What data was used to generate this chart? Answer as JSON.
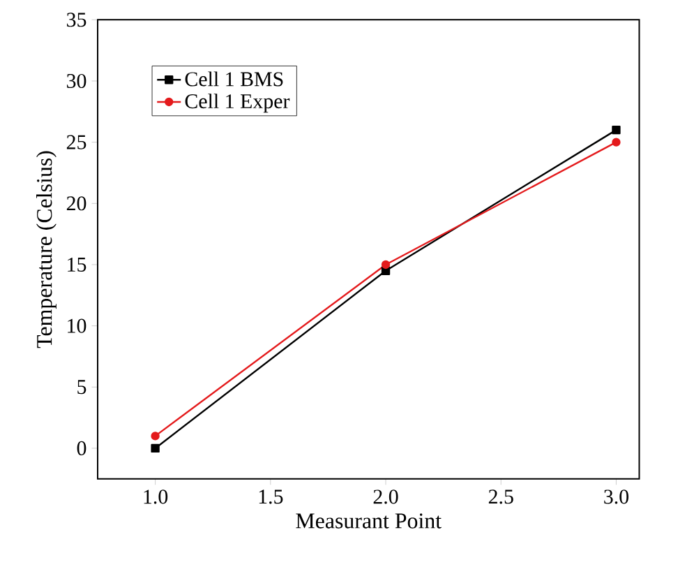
{
  "chart_data": {
    "type": "line",
    "xlabel": "Measurant Point",
    "ylabel": "Temperature (Celsius)",
    "x": [
      1.0,
      2.0,
      3.0
    ],
    "series": [
      {
        "name": "Cell 1 BMS",
        "color": "#000000",
        "marker": "square",
        "values": [
          0,
          14.5,
          26
        ]
      },
      {
        "name": "Cell 1 Exper",
        "color": "#e41a1c",
        "marker": "circle",
        "values": [
          1,
          15,
          25
        ]
      }
    ],
    "xlim": [
      0.75,
      3.1
    ],
    "ylim": [
      -2.5,
      35
    ],
    "xticks": [
      {
        "value": 1.0,
        "label": "1.0"
      },
      {
        "value": 1.5,
        "label": "1.5"
      },
      {
        "value": 2.0,
        "label": "2.0"
      },
      {
        "value": 2.5,
        "label": "2.5"
      },
      {
        "value": 3.0,
        "label": "3.0"
      }
    ],
    "yticks": [
      0,
      5,
      10,
      15,
      20,
      25,
      30,
      35
    ],
    "grid": false,
    "legend": "top left",
    "line_style": "solid"
  }
}
